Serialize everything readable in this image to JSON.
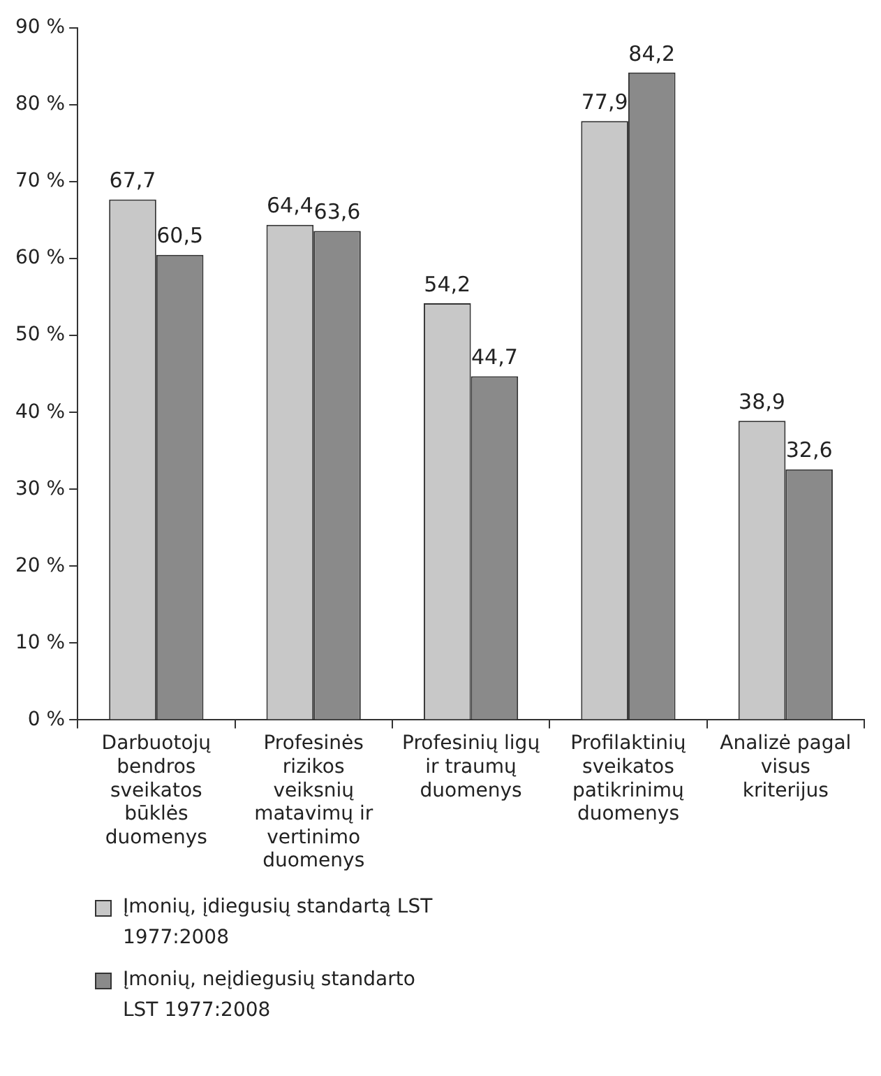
{
  "chart_data": {
    "type": "bar",
    "categories": [
      "Darbuotojų bendros sveikatos būklės duomenys",
      "Profesinės rizikos veiksnių matavimų ir vertinimo duomenys",
      "Profesinių ligų ir traumų duomenys",
      "Profilaktinių sveikatos patikrinimų duomenys",
      "Analizė pagal visus kriterijus"
    ],
    "series": [
      {
        "name": "Įmonių, įdiegusių standartą LST 1977:2008",
        "color": "#c8c8c8",
        "values": [
          67.7,
          64.4,
          54.2,
          77.9,
          38.9
        ],
        "value_labels": [
          "67,7",
          "64,4",
          "54,2",
          "77,9",
          "38,9"
        ]
      },
      {
        "name": "Įmonių, neįdiegusių standarto LST 1977:2008",
        "color": "#8a8a8a",
        "values": [
          60.5,
          63.6,
          44.7,
          84.2,
          32.6
        ],
        "value_labels": [
          "60,5",
          "63,6",
          "44,7",
          "84,2",
          "32,6"
        ]
      }
    ],
    "ylim": [
      0,
      90
    ],
    "yticks": [
      {
        "value": 0,
        "label": "0 %"
      },
      {
        "value": 10,
        "label": "10 %"
      },
      {
        "value": 20,
        "label": "20 %"
      },
      {
        "value": 30,
        "label": "30 %"
      },
      {
        "value": 40,
        "label": "40 %"
      },
      {
        "value": 50,
        "label": "50 %"
      },
      {
        "value": 60,
        "label": "60 %"
      },
      {
        "value": 70,
        "label": "70 %"
      },
      {
        "value": 80,
        "label": "80 %"
      },
      {
        "value": 90,
        "label": "90 %"
      }
    ],
    "grid": false,
    "legend": "bottom"
  }
}
